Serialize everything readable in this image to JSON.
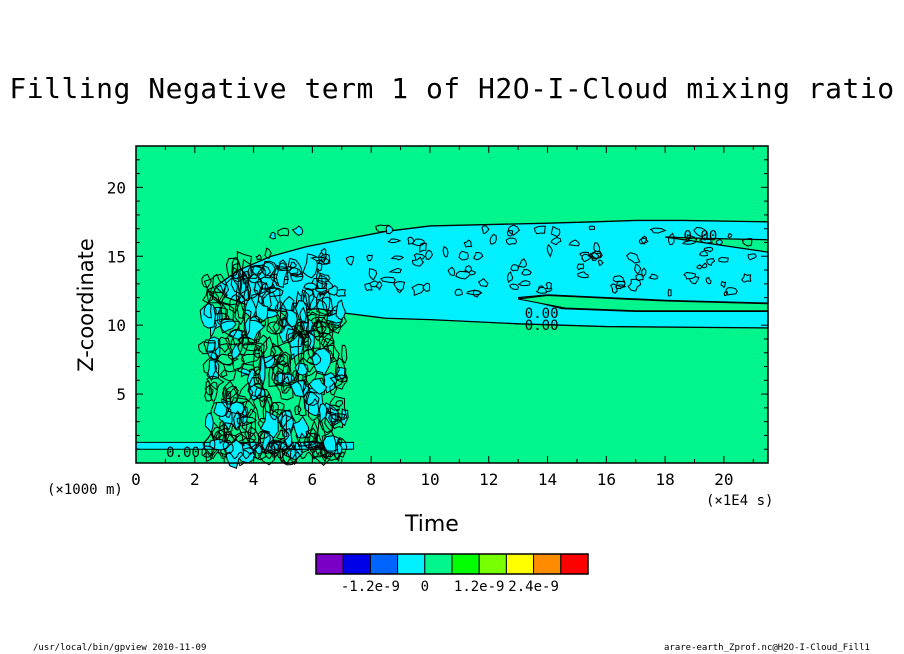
{
  "chart_data": {
    "type": "contour",
    "title": "Filling Negative term 1 of H2O-I-Cloud mixing ratio",
    "xlabel": "Time",
    "ylabel": "Z-coordinate",
    "x_unit_label": "(×1E4 s)",
    "y_unit_label": "(×1000 m)",
    "xlim": [
      0,
      21.5
    ],
    "ylim": [
      0,
      23
    ],
    "x_ticks": [
      0,
      2,
      4,
      6,
      8,
      10,
      12,
      14,
      16,
      18,
      20
    ],
    "y_ticks": [
      5,
      10,
      15,
      20
    ],
    "background_value_color": "#00f58c",
    "contour_labels": [
      {
        "text": "0.00",
        "x": 1.6,
        "z": 0.8
      },
      {
        "text": "0.00",
        "x": 13.8,
        "z": 10.0
      },
      {
        "text": "0.00",
        "x": 13.8,
        "z": 10.9
      },
      {
        "text": "0.00",
        "x": 19.2,
        "z": 16.5
      }
    ],
    "colorbar": {
      "colors": [
        "#7a00c8",
        "#0000e6",
        "#0064ff",
        "#00f0ff",
        "#00f58c",
        "#00ff00",
        "#78ff00",
        "#ffff00",
        "#ff8c00",
        "#ff0000"
      ],
      "tick_labels": [
        "-1.2e-9",
        "0",
        "1.2e-9",
        "2.4e-9"
      ]
    }
  },
  "footer": {
    "left": "/usr/local/bin/gpview  2010-11-09",
    "right": "arare-earth_Zprof.nc@H2O-I-Cloud_Fill1"
  }
}
